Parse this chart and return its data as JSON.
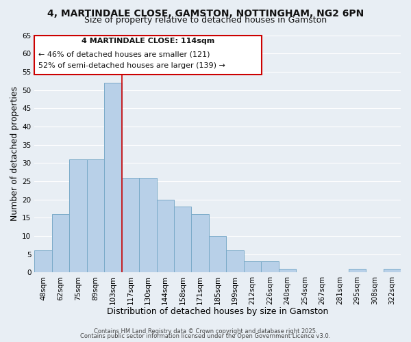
{
  "title": "4, MARTINDALE CLOSE, GAMSTON, NOTTINGHAM, NG2 6PN",
  "subtitle": "Size of property relative to detached houses in Gamston",
  "xlabel": "Distribution of detached houses by size in Gamston",
  "ylabel": "Number of detached properties",
  "bar_labels": [
    "48sqm",
    "62sqm",
    "75sqm",
    "89sqm",
    "103sqm",
    "117sqm",
    "130sqm",
    "144sqm",
    "158sqm",
    "171sqm",
    "185sqm",
    "199sqm",
    "212sqm",
    "226sqm",
    "240sqm",
    "254sqm",
    "267sqm",
    "281sqm",
    "295sqm",
    "308sqm",
    "322sqm"
  ],
  "bar_values": [
    6,
    16,
    31,
    31,
    52,
    26,
    26,
    20,
    18,
    16,
    10,
    6,
    3,
    3,
    1,
    0,
    0,
    0,
    1,
    0,
    1
  ],
  "bar_color": "#b8d0e8",
  "bar_edge_color": "#7aaac8",
  "vline_x": 4.5,
  "vline_color": "#cc0000",
  "ylim": [
    0,
    65
  ],
  "yticks": [
    0,
    5,
    10,
    15,
    20,
    25,
    30,
    35,
    40,
    45,
    50,
    55,
    60,
    65
  ],
  "annotation_title": "4 MARTINDALE CLOSE: 114sqm",
  "annotation_line1": "← 46% of detached houses are smaller (121)",
  "annotation_line2": "52% of semi-detached houses are larger (139) →",
  "annotation_box_color": "#ffffff",
  "annotation_box_edge": "#cc0000",
  "footer_line1": "Contains HM Land Registry data © Crown copyright and database right 2025.",
  "footer_line2": "Contains public sector information licensed under the Open Government Licence v3.0.",
  "background_color": "#e8eef4",
  "grid_color": "#ffffff",
  "title_fontsize": 10,
  "subtitle_fontsize": 9,
  "axis_label_fontsize": 9,
  "tick_fontsize": 7.5,
  "annotation_fontsize": 8,
  "footer_fontsize": 6
}
